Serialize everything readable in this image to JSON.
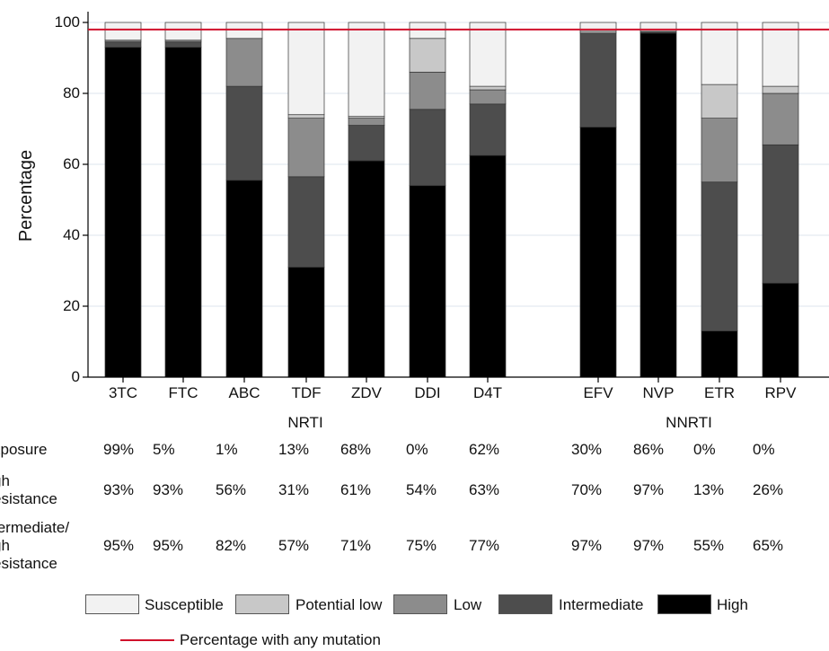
{
  "chart_data": {
    "type": "bar",
    "stacked": true,
    "ylabel": "Percentage",
    "ylim": [
      0,
      100
    ],
    "yticks": [
      0,
      20,
      40,
      60,
      80,
      100
    ],
    "grid": true,
    "groups": [
      {
        "name": "NRTI",
        "categories": [
          "3TC",
          "FTC",
          "ABC",
          "TDF",
          "ZDV",
          "DDI",
          "D4T"
        ]
      },
      {
        "name": "NNRTI",
        "categories": [
          "EFV",
          "NVP",
          "ETR",
          "RPV"
        ]
      }
    ],
    "categories": [
      "3TC",
      "FTC",
      "ABC",
      "TDF",
      "ZDV",
      "DDI",
      "D4T",
      "EFV",
      "NVP",
      "ETR",
      "RPV"
    ],
    "series": [
      {
        "name": "High",
        "color": "#000000",
        "values": [
          93,
          93,
          55.5,
          31,
          61,
          54,
          62.5,
          70.5,
          97,
          13,
          26.5
        ]
      },
      {
        "name": "Intermediate",
        "color": "#4d4d4d",
        "values": [
          1.5,
          1.5,
          26.5,
          25.5,
          10,
          21.5,
          14.5,
          26.5,
          0.5,
          42,
          39
        ]
      },
      {
        "name": "Low",
        "color": "#8c8c8c",
        "values": [
          0.5,
          0.5,
          13.5,
          16.5,
          2,
          10.5,
          4,
          0,
          0,
          18,
          14.5
        ]
      },
      {
        "name": "Potential low",
        "color": "#c8c8c8",
        "values": [
          0,
          0,
          0,
          1,
          0.5,
          9.5,
          1,
          0.5,
          0,
          9.5,
          2
        ]
      },
      {
        "name": "Susceptible",
        "color": "#f2f2f2",
        "values": [
          5,
          5,
          4.5,
          26,
          26.5,
          4.5,
          18,
          2.5,
          2.5,
          17.5,
          18
        ]
      }
    ],
    "reference_line": {
      "name": "Percentage with any mutation",
      "value": 98,
      "color": "#d0112b"
    }
  },
  "table": {
    "row_labels": [
      "xposure",
      "gh\nesistance",
      "termediate/\ngh\nesistance"
    ],
    "rows": [
      [
        "99%",
        "5%",
        "1%",
        "13%",
        "68%",
        "0%",
        "62%",
        "30%",
        "86%",
        "0%",
        "0%"
      ],
      [
        "93%",
        "93%",
        "56%",
        "31%",
        "61%",
        "54%",
        "63%",
        "70%",
        "97%",
        "13%",
        "26%"
      ],
      [
        "95%",
        "95%",
        "82%",
        "57%",
        "71%",
        "75%",
        "77%",
        "97%",
        "97%",
        "55%",
        "65%"
      ]
    ]
  },
  "legend": {
    "items": [
      "Susceptible",
      "Potential low",
      "Low",
      "Intermediate",
      "High"
    ],
    "line_label": "Percentage with any mutation"
  }
}
